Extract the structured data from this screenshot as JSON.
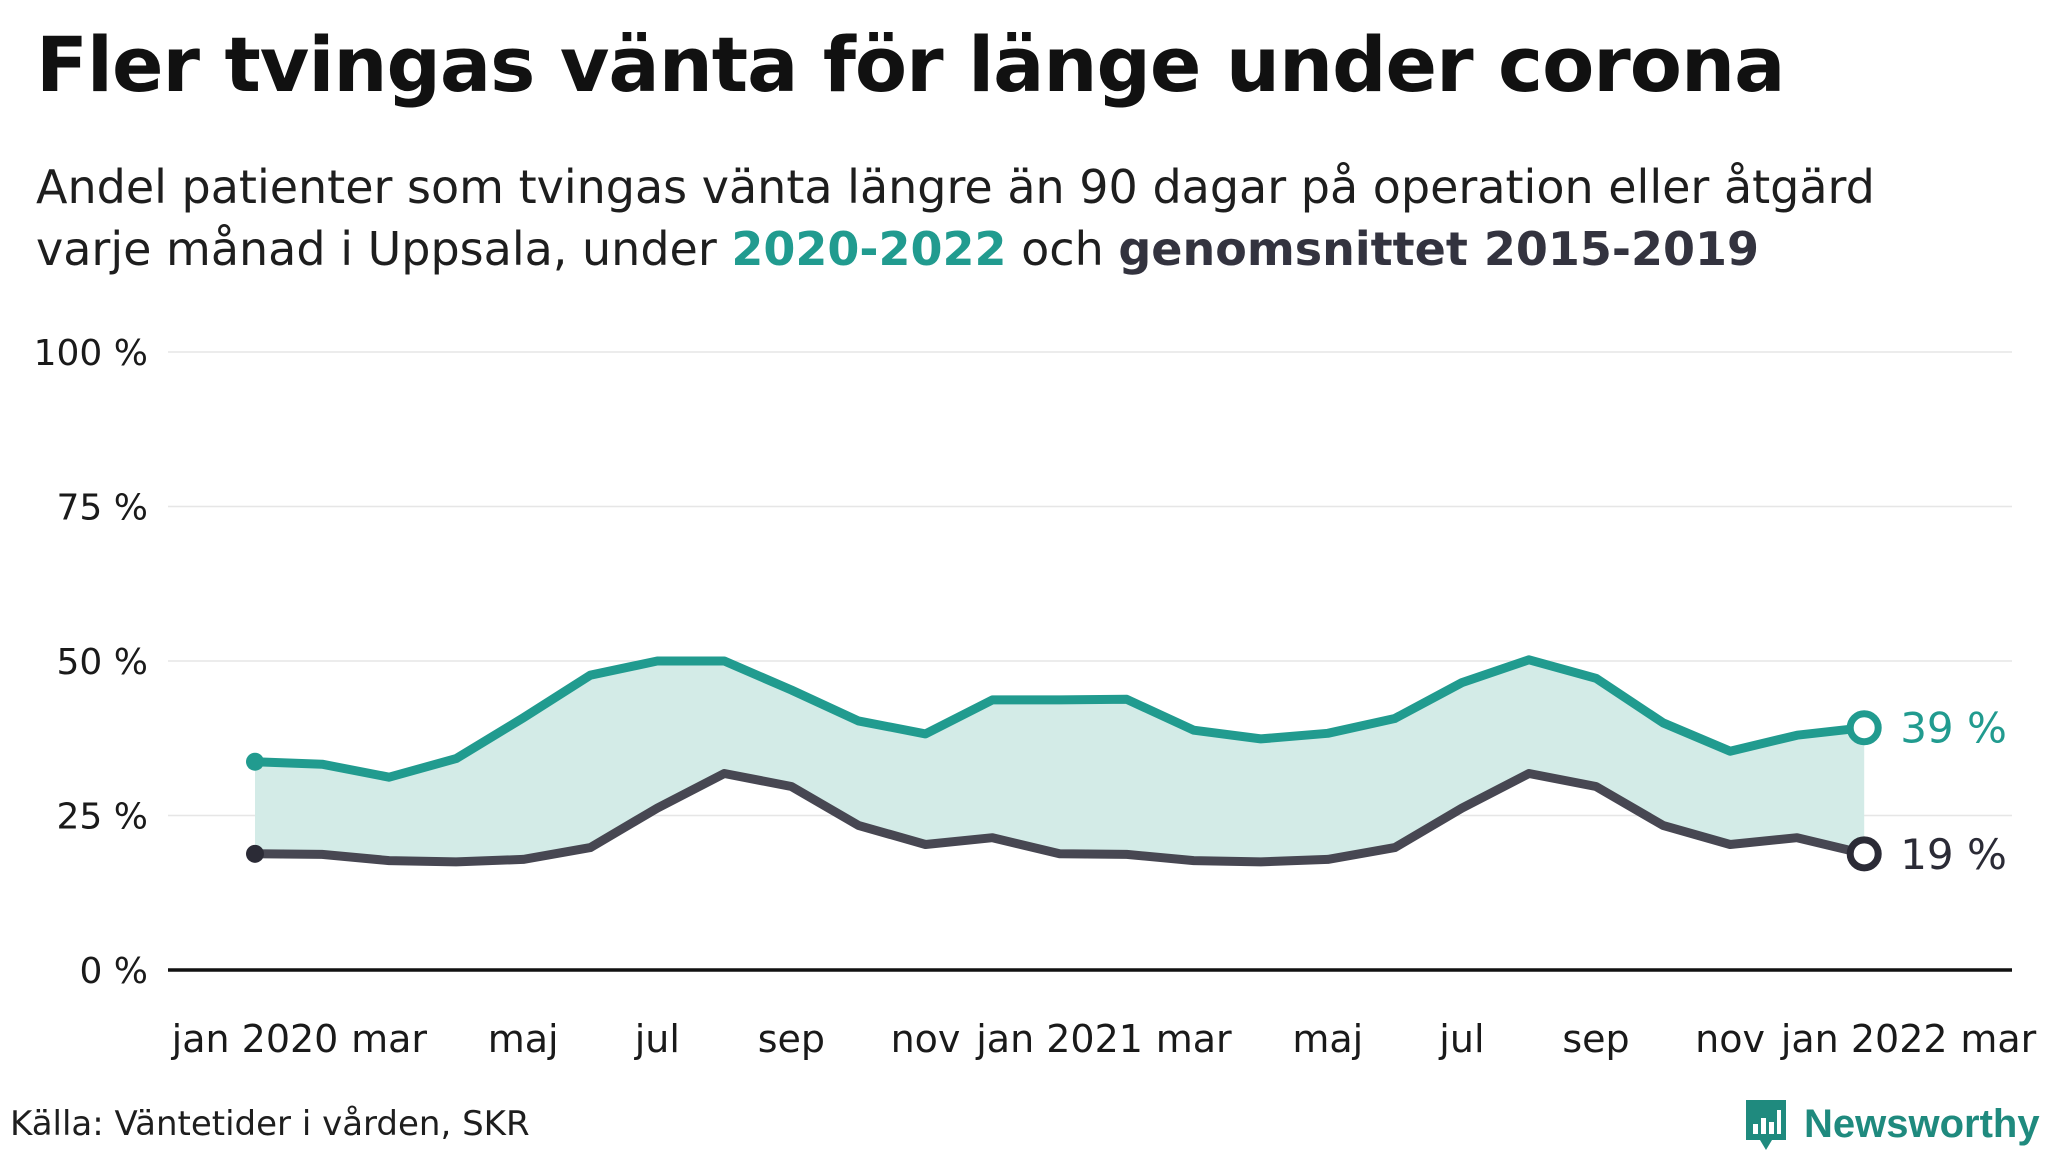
{
  "title": "Fler tvingas vänta för länge under corona",
  "subtitle": {
    "line1": "Andel patienter som tvingas vänta längre än 90 dagar på operation eller åtgärd",
    "line2_pre": "varje månad i Uppsala, under ",
    "series_a_label": "2020-2022",
    "line2_mid": " och ",
    "series_b_label": "genomsnittet 2015-2019"
  },
  "source": "Källa: Väntetider i vården, SKR",
  "brand": "Newsworthy",
  "colors": {
    "series_a": "#219b8f",
    "series_b": "#474752",
    "fill": "#d3ebe7",
    "grid": "#e6e6e6",
    "baseline": "#111111"
  },
  "chart_data": {
    "type": "line",
    "x_months": [
      "2020-01",
      "2020-02",
      "2020-03",
      "2020-04",
      "2020-05",
      "2020-06",
      "2020-07",
      "2020-08",
      "2020-09",
      "2020-10",
      "2020-11",
      "2020-12",
      "2021-01",
      "2021-02",
      "2021-03",
      "2021-04",
      "2021-05",
      "2021-06",
      "2021-07",
      "2021-08",
      "2021-09",
      "2021-10",
      "2021-11",
      "2021-12",
      "2022-01"
    ],
    "x_tick_labels": [
      "jan 2020",
      "mar",
      "maj",
      "jul",
      "sep",
      "nov",
      "jan 2021",
      "mar",
      "maj",
      "jul",
      "sep",
      "nov",
      "jan 2022",
      "mar"
    ],
    "x_tick_months": [
      "2020-01",
      "2020-03",
      "2020-05",
      "2020-07",
      "2020-09",
      "2020-11",
      "2021-01",
      "2021-03",
      "2021-05",
      "2021-07",
      "2021-09",
      "2021-11",
      "2022-01",
      "2022-03"
    ],
    "y_ticks": [
      0,
      25,
      50,
      75,
      100
    ],
    "y_tick_labels": [
      "0 %",
      "25 %",
      "50 %",
      "75 %",
      "100 %"
    ],
    "ylim": [
      0,
      100
    ],
    "grid": true,
    "fill_between": true,
    "series": [
      {
        "name": "2020-2022",
        "values": [
          33.7,
          33.3,
          31.2,
          34.2,
          40.8,
          47.7,
          50.0,
          50.0,
          45.3,
          40.3,
          38.2,
          43.7,
          43.7,
          43.8,
          38.8,
          37.4,
          38.3,
          40.7,
          46.5,
          50.2,
          47.2,
          40.0,
          35.4,
          38.0,
          39.2
        ],
        "end_label": "39 %"
      },
      {
        "name": "genomsnittet 2015-2019",
        "values": [
          18.8,
          18.7,
          17.7,
          17.5,
          17.9,
          19.8,
          26.2,
          31.8,
          29.7,
          23.4,
          20.3,
          21.4,
          18.8,
          18.7,
          17.7,
          17.5,
          17.9,
          19.8,
          26.2,
          31.8,
          29.7,
          23.4,
          20.3,
          21.4,
          18.8
        ],
        "end_label": "19 %"
      }
    ]
  }
}
